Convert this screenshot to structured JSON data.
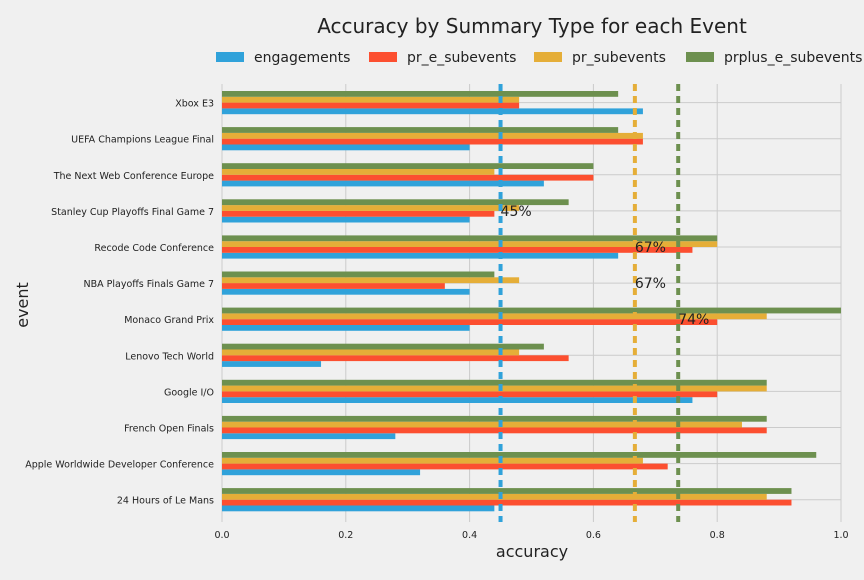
{
  "chart_data": {
    "type": "bar",
    "orientation": "horizontal",
    "title": "Accuracy by Summary Type for each Event",
    "xlabel": "accuracy",
    "ylabel": "event",
    "xlim": [
      0,
      1.0
    ],
    "xticks": [
      "0.0",
      "0.2",
      "0.4",
      "0.6",
      "0.8",
      "1.0"
    ],
    "grid": true,
    "legend_position": "top",
    "categories": [
      "Xbox E3",
      "UEFA Champions League Final",
      "The Next Web Conference Europe",
      "Stanley Cup Playoffs Final Game 7",
      "Recode Code Conference",
      "NBA Playoffs Finals Game 7",
      "Monaco Grand Prix",
      "Lenovo Tech World",
      "Google I/O",
      "French Open Finals",
      "Apple Worldwide Developer Conference",
      "24 Hours of Le Mans"
    ],
    "series": [
      {
        "name": "engagements",
        "color": "#30a2da",
        "values": [
          0.68,
          0.4,
          0.52,
          0.4,
          0.64,
          0.4,
          0.4,
          0.16,
          0.76,
          0.28,
          0.32,
          0.44
        ]
      },
      {
        "name": "pr_e_subevents",
        "color": "#fc4f30",
        "values": [
          0.48,
          0.68,
          0.6,
          0.44,
          0.76,
          0.36,
          0.8,
          0.56,
          0.8,
          0.88,
          0.72,
          0.92
        ]
      },
      {
        "name": "pr_subevents",
        "color": "#e5ae38",
        "values": [
          0.48,
          0.68,
          0.44,
          0.48,
          0.8,
          0.48,
          0.88,
          0.48,
          0.88,
          0.84,
          0.68,
          0.88
        ]
      },
      {
        "name": "prplus_e_subevents",
        "color": "#6d904f",
        "values": [
          0.64,
          0.64,
          0.6,
          0.56,
          0.8,
          0.44,
          1.0,
          0.52,
          0.88,
          0.88,
          0.96,
          0.92
        ]
      }
    ],
    "reference_lines": [
      {
        "series": "engagements",
        "value": 0.45,
        "label": "45%",
        "color": "#30a2da",
        "row": 3
      },
      {
        "series": "pr_subevents",
        "value": 0.667,
        "label": "67%",
        "color": "#e5ae38",
        "row": 4
      },
      {
        "series": "pr_subevents",
        "value": 0.667,
        "label": "67%",
        "color": "#e5ae38",
        "row": 5
      },
      {
        "series": "prplus_e_subevents",
        "value": 0.737,
        "label": "74%",
        "color": "#6d904f",
        "row": 6
      }
    ]
  }
}
